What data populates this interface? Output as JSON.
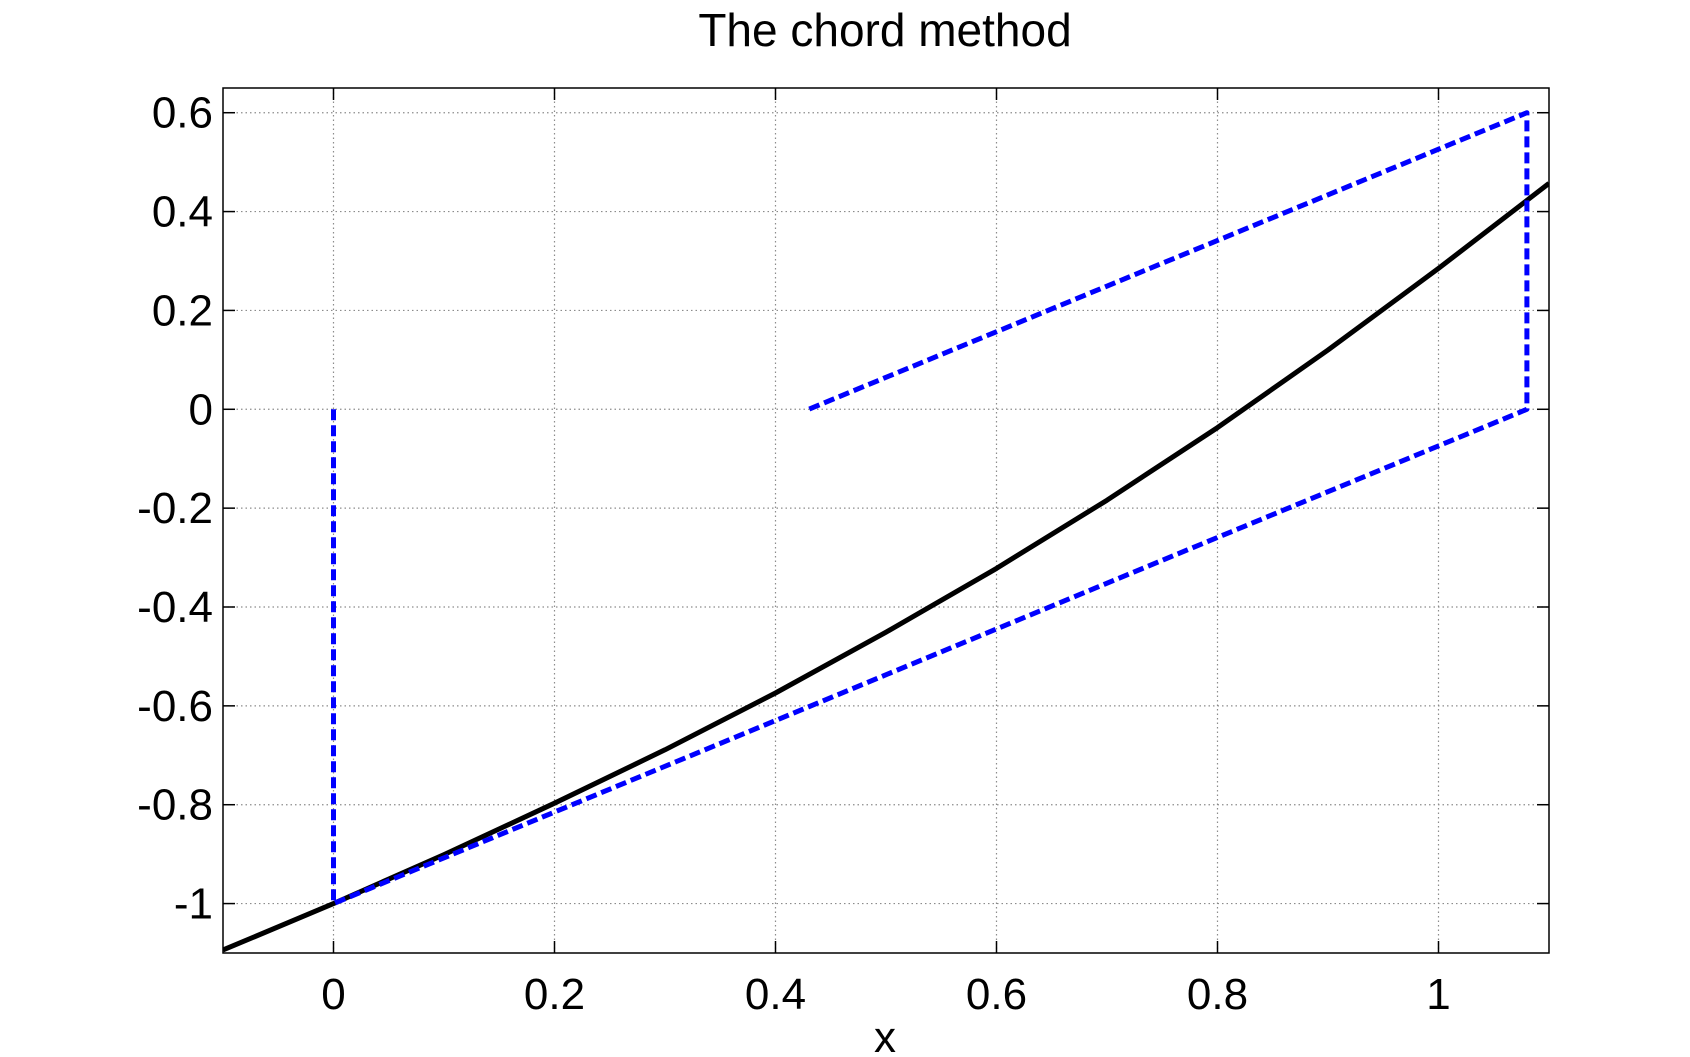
{
  "chart_data": {
    "type": "line",
    "title": "The chord method",
    "xlabel": "x",
    "ylabel": "",
    "xlim": [
      -0.1,
      1.1
    ],
    "ylim": [
      -1.1,
      0.65
    ],
    "grid": true,
    "xticks": [
      0,
      0.2,
      0.4,
      0.6,
      0.8,
      1
    ],
    "xtick_labels": [
      "0",
      "0.2",
      "0.4",
      "0.6",
      "0.8",
      "1"
    ],
    "yticks": [
      -1,
      -0.8,
      -0.6,
      -0.4,
      -0.2,
      0,
      0.2,
      0.4,
      0.6
    ],
    "ytick_labels": [
      "-1",
      "-0.8",
      "-0.6",
      "-0.4",
      "-0.2",
      "0",
      "0.2",
      "0.4",
      "0.6"
    ],
    "series": [
      {
        "style": "solid",
        "color": "#000000",
        "x": [
          -0.1,
          0.0,
          0.1,
          0.2,
          0.3,
          0.4,
          0.5,
          0.6,
          0.7,
          0.8,
          0.9,
          1.0,
          1.1
        ],
        "y": [
          -1.094,
          -1.0,
          -0.901,
          -0.797,
          -0.689,
          -0.574,
          -0.451,
          -0.322,
          -0.184,
          -0.037,
          0.12,
          0.285,
          0.457
        ]
      },
      {
        "style": "dashed",
        "color": "#0000ff",
        "x": [
          0.0,
          0.0,
          1.08,
          1.08,
          0.43
        ],
        "y": [
          0.0,
          -1.0,
          0.0,
          0.6,
          0.0
        ]
      }
    ]
  }
}
